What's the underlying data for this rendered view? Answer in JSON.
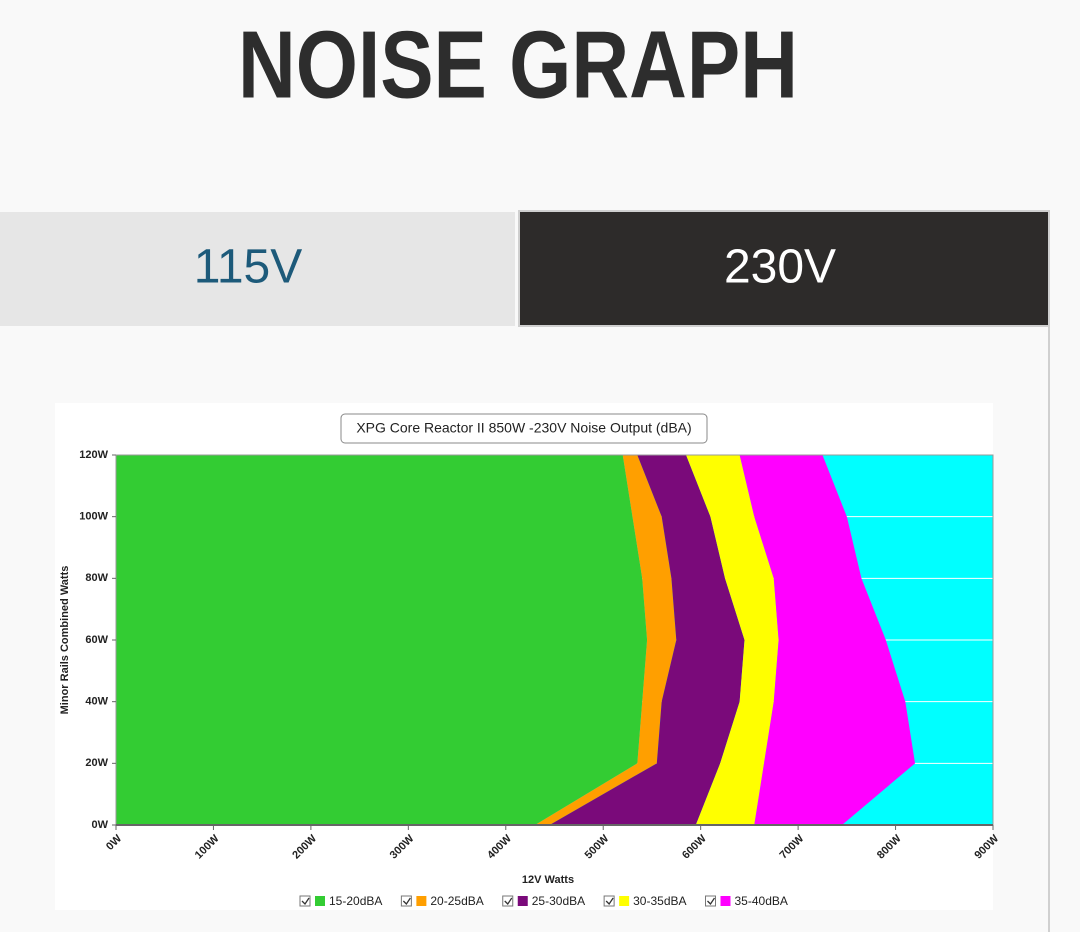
{
  "header": {
    "title": "NOISE GRAPH"
  },
  "tabs": [
    {
      "label": "115V"
    },
    {
      "label": "230V"
    }
  ],
  "chart_data": {
    "type": "zones",
    "title": "XPG Core Reactor II 850W -230V Noise Output (dBA)",
    "xlabel": "12V Watts",
    "ylabel": "Minor Rails Combined Watts",
    "xlim": [
      0,
      900
    ],
    "xticks": [
      {
        "value": 0,
        "label": "0W"
      },
      {
        "value": 100,
        "label": "100W"
      },
      {
        "value": 200,
        "label": "200W"
      },
      {
        "value": 300,
        "label": "300W"
      },
      {
        "value": 400,
        "label": "400W"
      },
      {
        "value": 500,
        "label": "500W"
      },
      {
        "value": 600,
        "label": "600W"
      },
      {
        "value": 700,
        "label": "700W"
      },
      {
        "value": 800,
        "label": "800W"
      },
      {
        "value": 900,
        "label": "900W"
      }
    ],
    "ylim": [
      0,
      120
    ],
    "yticks": [
      {
        "value": 0,
        "label": "0W"
      },
      {
        "value": 20,
        "label": "20W"
      },
      {
        "value": 40,
        "label": "40W"
      },
      {
        "value": 60,
        "label": "60W"
      },
      {
        "value": 80,
        "label": "80W"
      },
      {
        "value": 100,
        "label": "100W"
      },
      {
        "value": 120,
        "label": "120W"
      }
    ],
    "grid": true,
    "plot_color": "#00ffff",
    "y": [
      0,
      20,
      40,
      60,
      80,
      100,
      120
    ],
    "series": [
      {
        "name": "15-20dBA",
        "color": "#33cc33",
        "values": [
          430,
          535,
          540,
          545,
          540,
          530,
          520
        ]
      },
      {
        "name": "20-25dBA",
        "color": "#ff9f00",
        "values": [
          445,
          555,
          560,
          575,
          570,
          560,
          535
        ]
      },
      {
        "name": "25-30dBA",
        "color": "#7a0a7a",
        "values": [
          595,
          620,
          640,
          645,
          625,
          610,
          585
        ]
      },
      {
        "name": "30-35dBA",
        "color": "#ffff00",
        "values": [
          655,
          665,
          675,
          680,
          675,
          655,
          640
        ]
      },
      {
        "name": "35-40dBA",
        "color": "#ff00ff",
        "values": [
          745,
          820,
          810,
          790,
          765,
          750,
          725
        ]
      }
    ],
    "legend": "bottom"
  }
}
